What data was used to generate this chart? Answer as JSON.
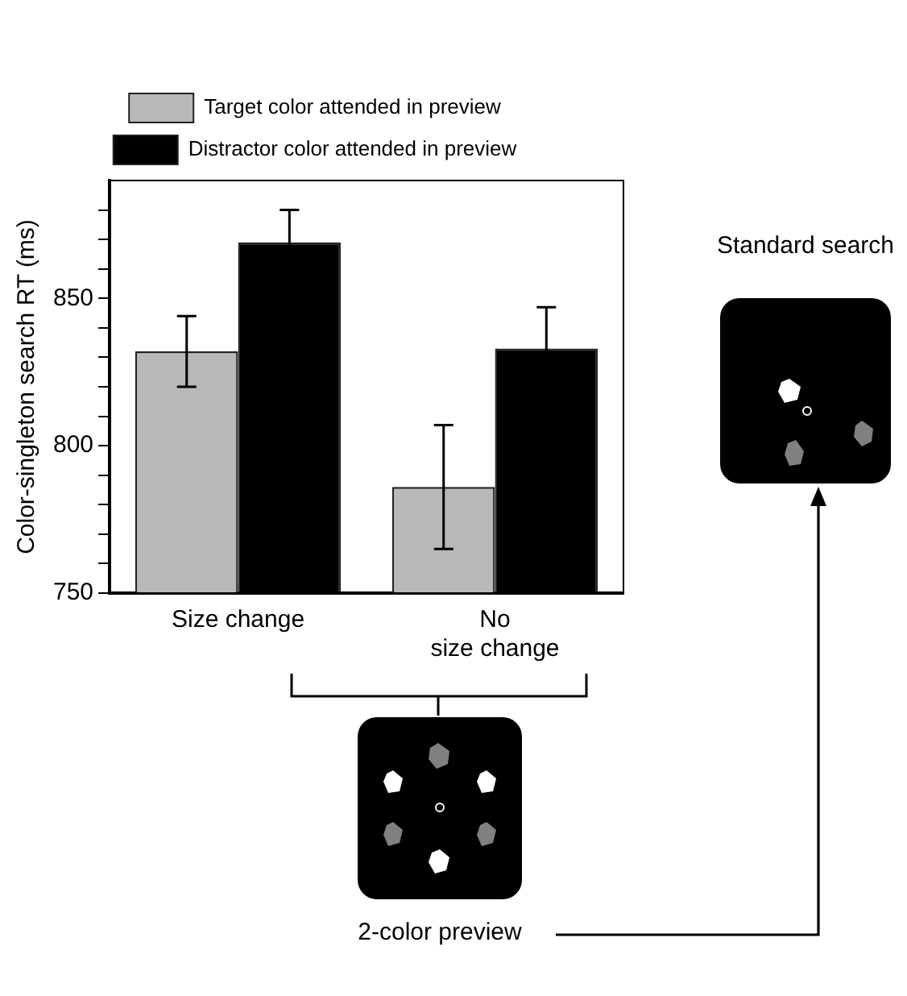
{
  "chart_data": {
    "type": "bar",
    "ylabel": "Color-singleton search RT (ms)",
    "categories": [
      "Size change",
      "No\nsize change"
    ],
    "series": [
      {
        "name": "Target color attended in preview",
        "color": "#b8b8b8",
        "values": [
          832,
          786
        ],
        "errors": [
          12,
          21
        ]
      },
      {
        "name": "Distractor color attended in preview",
        "color": "#000000",
        "values": [
          869,
          833
        ],
        "errors": [
          11,
          14
        ]
      }
    ],
    "ylim": [
      750,
      890
    ],
    "yticks": [
      750,
      {
        "value": 760,
        "label": null
      },
      {
        "value": 770,
        "label": null
      },
      {
        "value": 780,
        "label": null
      },
      {
        "value": 790,
        "label": null
      },
      800,
      {
        "value": 810,
        "label": null
      },
      {
        "value": 820,
        "label": null
      },
      {
        "value": 830,
        "label": null
      },
      {
        "value": 840,
        "label": null
      },
      850,
      {
        "value": 860,
        "label": null
      },
      {
        "value": 870,
        "label": null
      },
      {
        "value": 880,
        "label": null
      }
    ],
    "grid": false,
    "legend": "top",
    "annotations": [
      "Standard search",
      "2-color preview"
    ]
  }
}
